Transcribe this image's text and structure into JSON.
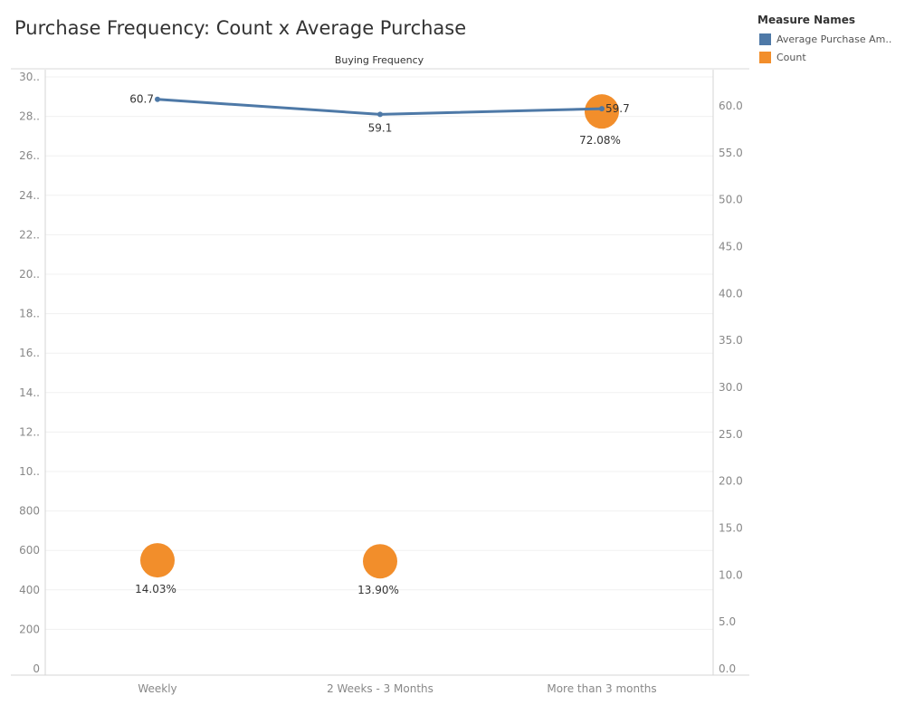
{
  "title": "Purchase Frequency: Count x Average Purchase",
  "legend": {
    "title": "Measure Names",
    "items": [
      {
        "label": "Average Purchase Am..",
        "color": "#4e79a7"
      },
      {
        "label": "Count",
        "color": "#f28e2b"
      }
    ]
  },
  "chart_data": {
    "type": "line",
    "column_header": "Buying Frequency",
    "categories": [
      "Weekly",
      "2 Weeks - 3 Months",
      "More than 3 months"
    ],
    "grid": true,
    "left_axis": {
      "ticks": [
        "0",
        "200",
        "400",
        "600",
        "800",
        "10..",
        "12..",
        "14..",
        "16..",
        "18..",
        "20..",
        "22..",
        "24..",
        "26..",
        "28..",
        "30.."
      ],
      "tick_values": [
        0,
        200,
        400,
        600,
        800,
        1000,
        1200,
        1400,
        1600,
        1800,
        2000,
        2200,
        2400,
        2600,
        2800,
        3000
      ],
      "range": [
        0,
        3000
      ]
    },
    "right_axis": {
      "ticks": [
        "0.0",
        "5.0",
        "10.0",
        "15.0",
        "20.0",
        "25.0",
        "30.0",
        "35.0",
        "40.0",
        "45.0",
        "50.0",
        "55.0",
        "60.0"
      ],
      "range": [
        0,
        63
      ]
    },
    "series": [
      {
        "name": "Average Purchase Am..",
        "axis": "right",
        "mark": "line",
        "color": "#4e79a7",
        "values": [
          60.7,
          59.1,
          59.7
        ],
        "labels": [
          "60.7",
          "59.1",
          "59.7"
        ]
      },
      {
        "name": "Count",
        "axis": "left",
        "mark": "circle",
        "color": "#f28e2b",
        "values": [
          550,
          545,
          2825
        ],
        "labels": [
          "14.03%",
          "13.90%",
          "72.08%"
        ]
      }
    ]
  }
}
